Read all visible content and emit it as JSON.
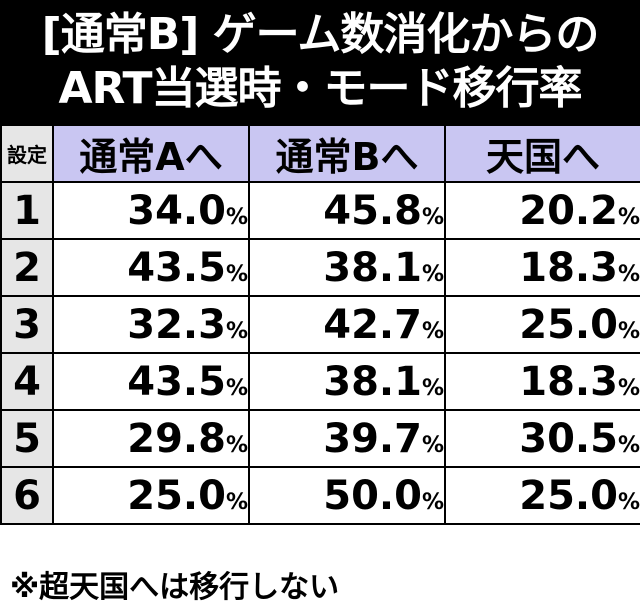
{
  "title": {
    "line1": "[通常B] ゲーム数消化からの",
    "line2": "ART当選時・モード移行率"
  },
  "table": {
    "corner_label": "設定",
    "headers": [
      "通常Aへ",
      "通常Bへ",
      "天国へ"
    ],
    "percent_sign": "%",
    "rows": [
      {
        "setting": "1",
        "values": [
          "34.0",
          "45.8",
          "20.2"
        ]
      },
      {
        "setting": "2",
        "values": [
          "43.5",
          "38.1",
          "18.3"
        ]
      },
      {
        "setting": "3",
        "values": [
          "32.3",
          "42.7",
          "25.0"
        ]
      },
      {
        "setting": "4",
        "values": [
          "43.5",
          "38.1",
          "18.3"
        ]
      },
      {
        "setting": "5",
        "values": [
          "29.8",
          "39.7",
          "30.5"
        ]
      },
      {
        "setting": "6",
        "values": [
          "25.0",
          "50.0",
          "25.0"
        ]
      }
    ]
  },
  "footnote": "※超天国へは移行しない",
  "colors": {
    "title_background": "#000000",
    "header_background": "#c9c6f2",
    "setting_background": "#e6e6e6"
  }
}
